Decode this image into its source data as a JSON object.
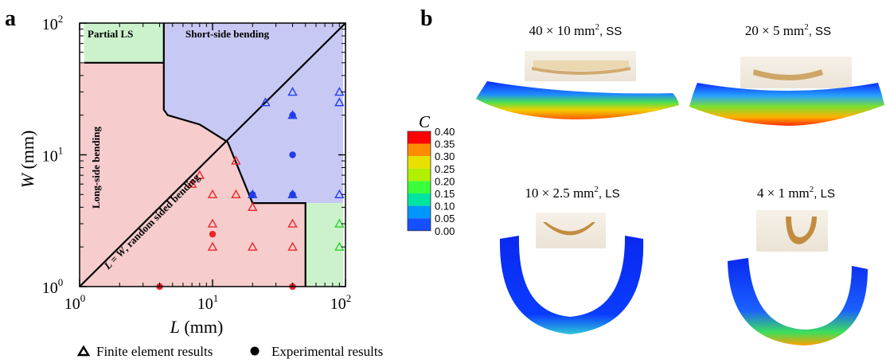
{
  "figure": {
    "panel_a_label": "a",
    "panel_b_label": "b"
  },
  "chart_data": {
    "type": "scatter",
    "xscale": "log",
    "yscale": "log",
    "xlim": [
      1,
      100
    ],
    "ylim": [
      1,
      100
    ],
    "xlabel_var": "L",
    "xlabel_unit": " (mm)",
    "ylabel_var": "W",
    "ylabel_unit": " (mm)",
    "x_ticks": [
      {
        "value": 1,
        "base": "10",
        "exp": "0"
      },
      {
        "value": 10,
        "base": "10",
        "exp": "1"
      },
      {
        "value": 100,
        "base": "10",
        "exp": "2"
      }
    ],
    "y_ticks": [
      {
        "value": 1,
        "base": "10",
        "exp": "0"
      },
      {
        "value": 10,
        "base": "10",
        "exp": "1"
      },
      {
        "value": 100,
        "base": "10",
        "exp": "2"
      }
    ],
    "regions": [
      {
        "name": "Partial LS",
        "color": "#ccf2cc",
        "polygon": [
          [
            1.08,
            100
          ],
          [
            4.3,
            100
          ],
          [
            4.3,
            50
          ],
          [
            1.08,
            50
          ]
        ]
      },
      {
        "name": "Short-side bending",
        "color": "#c8c8f4",
        "polygon": [
          [
            4.3,
            100
          ],
          [
            96,
            100
          ],
          [
            13,
            12.5
          ],
          [
            8,
            17
          ],
          [
            4.6,
            20
          ],
          [
            4.3,
            22
          ],
          [
            4.3,
            100
          ]
        ]
      },
      {
        "name": "Short-side bending lower",
        "color": "#c8c8f4",
        "polygon": [
          [
            13,
            12.5
          ],
          [
            96,
            100
          ],
          [
            96,
            4.3
          ],
          [
            20,
            4.3
          ]
        ]
      },
      {
        "name": "Long-side bending",
        "color": "#f6cccc",
        "polygon": [
          [
            1,
            1
          ],
          [
            1,
            50
          ],
          [
            4.3,
            50
          ],
          [
            4.3,
            22
          ],
          [
            4.6,
            20
          ],
          [
            8,
            17
          ],
          [
            13,
            12.5
          ]
        ]
      },
      {
        "name": "random sided bending",
        "color": "#f6cccc",
        "polygon": [
          [
            1,
            1
          ],
          [
            13,
            12.5
          ],
          [
            20,
            4.3
          ],
          [
            50,
            4.3
          ],
          [
            50,
            1
          ]
        ]
      },
      {
        "name": "Partial LS lower",
        "color": "#ccf2cc",
        "polygon": [
          [
            50,
            1
          ],
          [
            50,
            4.3
          ],
          [
            96,
            4.3
          ],
          [
            96,
            1
          ]
        ]
      }
    ],
    "boundaries": [
      [
        [
          4.3,
          100
        ],
        [
          4.3,
          22
        ],
        [
          4.6,
          20
        ],
        [
          8,
          17
        ],
        [
          13,
          12.5
        ],
        [
          20,
          4.3
        ],
        [
          50,
          4.3
        ],
        [
          50,
          1
        ]
      ],
      [
        [
          1,
          1
        ],
        [
          100,
          100
        ]
      ],
      [
        [
          1.08,
          50
        ],
        [
          4.3,
          50
        ]
      ]
    ],
    "region_labels": {
      "partial_ls": "Partial LS",
      "short_side": "Short-side bending",
      "long_side": "Long-side bending",
      "diagonal_var": "L = W",
      "diagonal_text": ", random sided bending"
    },
    "series": [
      {
        "name": "Finite element results",
        "marker": "triangle",
        "points": [
          {
            "x": 7,
            "y": 6,
            "c": "red"
          },
          {
            "x": 8,
            "y": 7,
            "c": "red"
          },
          {
            "x": 10,
            "y": 5,
            "c": "red"
          },
          {
            "x": 15,
            "y": 5,
            "c": "red"
          },
          {
            "x": 15,
            "y": 9,
            "c": "red"
          },
          {
            "x": 20,
            "y": 4,
            "c": "red"
          },
          {
            "x": 10,
            "y": 3,
            "c": "red"
          },
          {
            "x": 10,
            "y": 2,
            "c": "red"
          },
          {
            "x": 20,
            "y": 2,
            "c": "red"
          },
          {
            "x": 40,
            "y": 3,
            "c": "red"
          },
          {
            "x": 40,
            "y": 2,
            "c": "red"
          },
          {
            "x": 20,
            "y": 5,
            "c": "blue"
          },
          {
            "x": 25,
            "y": 25,
            "c": "blue"
          },
          {
            "x": 40,
            "y": 30,
            "c": "blue"
          },
          {
            "x": 40,
            "y": 20,
            "c": "blue"
          },
          {
            "x": 40,
            "y": 5,
            "c": "blue"
          },
          {
            "x": 90,
            "y": 30,
            "c": "blue"
          },
          {
            "x": 90,
            "y": 25,
            "c": "blue"
          },
          {
            "x": 90,
            "y": 5,
            "c": "blue"
          },
          {
            "x": 90,
            "y": 3,
            "c": "green"
          },
          {
            "x": 90,
            "y": 2,
            "c": "green"
          }
        ]
      },
      {
        "name": "Experimental results",
        "marker": "circle",
        "points": [
          {
            "x": 4,
            "y": 1,
            "c": "red"
          },
          {
            "x": 10,
            "y": 2.5,
            "c": "red"
          },
          {
            "x": 40,
            "y": 1,
            "c": "red"
          },
          {
            "x": 40,
            "y": 10,
            "c": "blue"
          },
          {
            "x": 40,
            "y": 20,
            "c": "blue"
          },
          {
            "x": 20,
            "y": 5,
            "c": "blue"
          },
          {
            "x": 40,
            "y": 5,
            "c": "blue"
          }
        ]
      }
    ],
    "legend": {
      "placement": "bottom",
      "fe_label": "Finite element results",
      "exp_label": "Experimental results"
    },
    "colors": {
      "red": "#e8262a",
      "blue": "#1f3ee8",
      "green": "#2fce2f"
    }
  },
  "colorbar": {
    "title": "C",
    "labels": [
      "0.40",
      "0.35",
      "0.30",
      "0.25",
      "0.20",
      "0.15",
      "0.10",
      "0.05",
      "0.00"
    ],
    "colors": [
      "#ff0000",
      "#ff8c00",
      "#e8e000",
      "#b0f000",
      "#3cff3c",
      "#00e4a0",
      "#0096ff",
      "#1450ff",
      "#0000ff"
    ]
  },
  "panels": [
    {
      "id": "p1",
      "caption": "40 × 10 mm",
      "sup": "2",
      "suffix": ", SS"
    },
    {
      "id": "p2",
      "caption": "20 × 5 mm",
      "sup": "2",
      "suffix": ", SS"
    },
    {
      "id": "p3",
      "caption": "10 × 2.5 mm",
      "sup": "2",
      "suffix": ", LS"
    },
    {
      "id": "p4",
      "caption": "4 × 1 mm",
      "sup": "2",
      "suffix": ", LS"
    }
  ]
}
